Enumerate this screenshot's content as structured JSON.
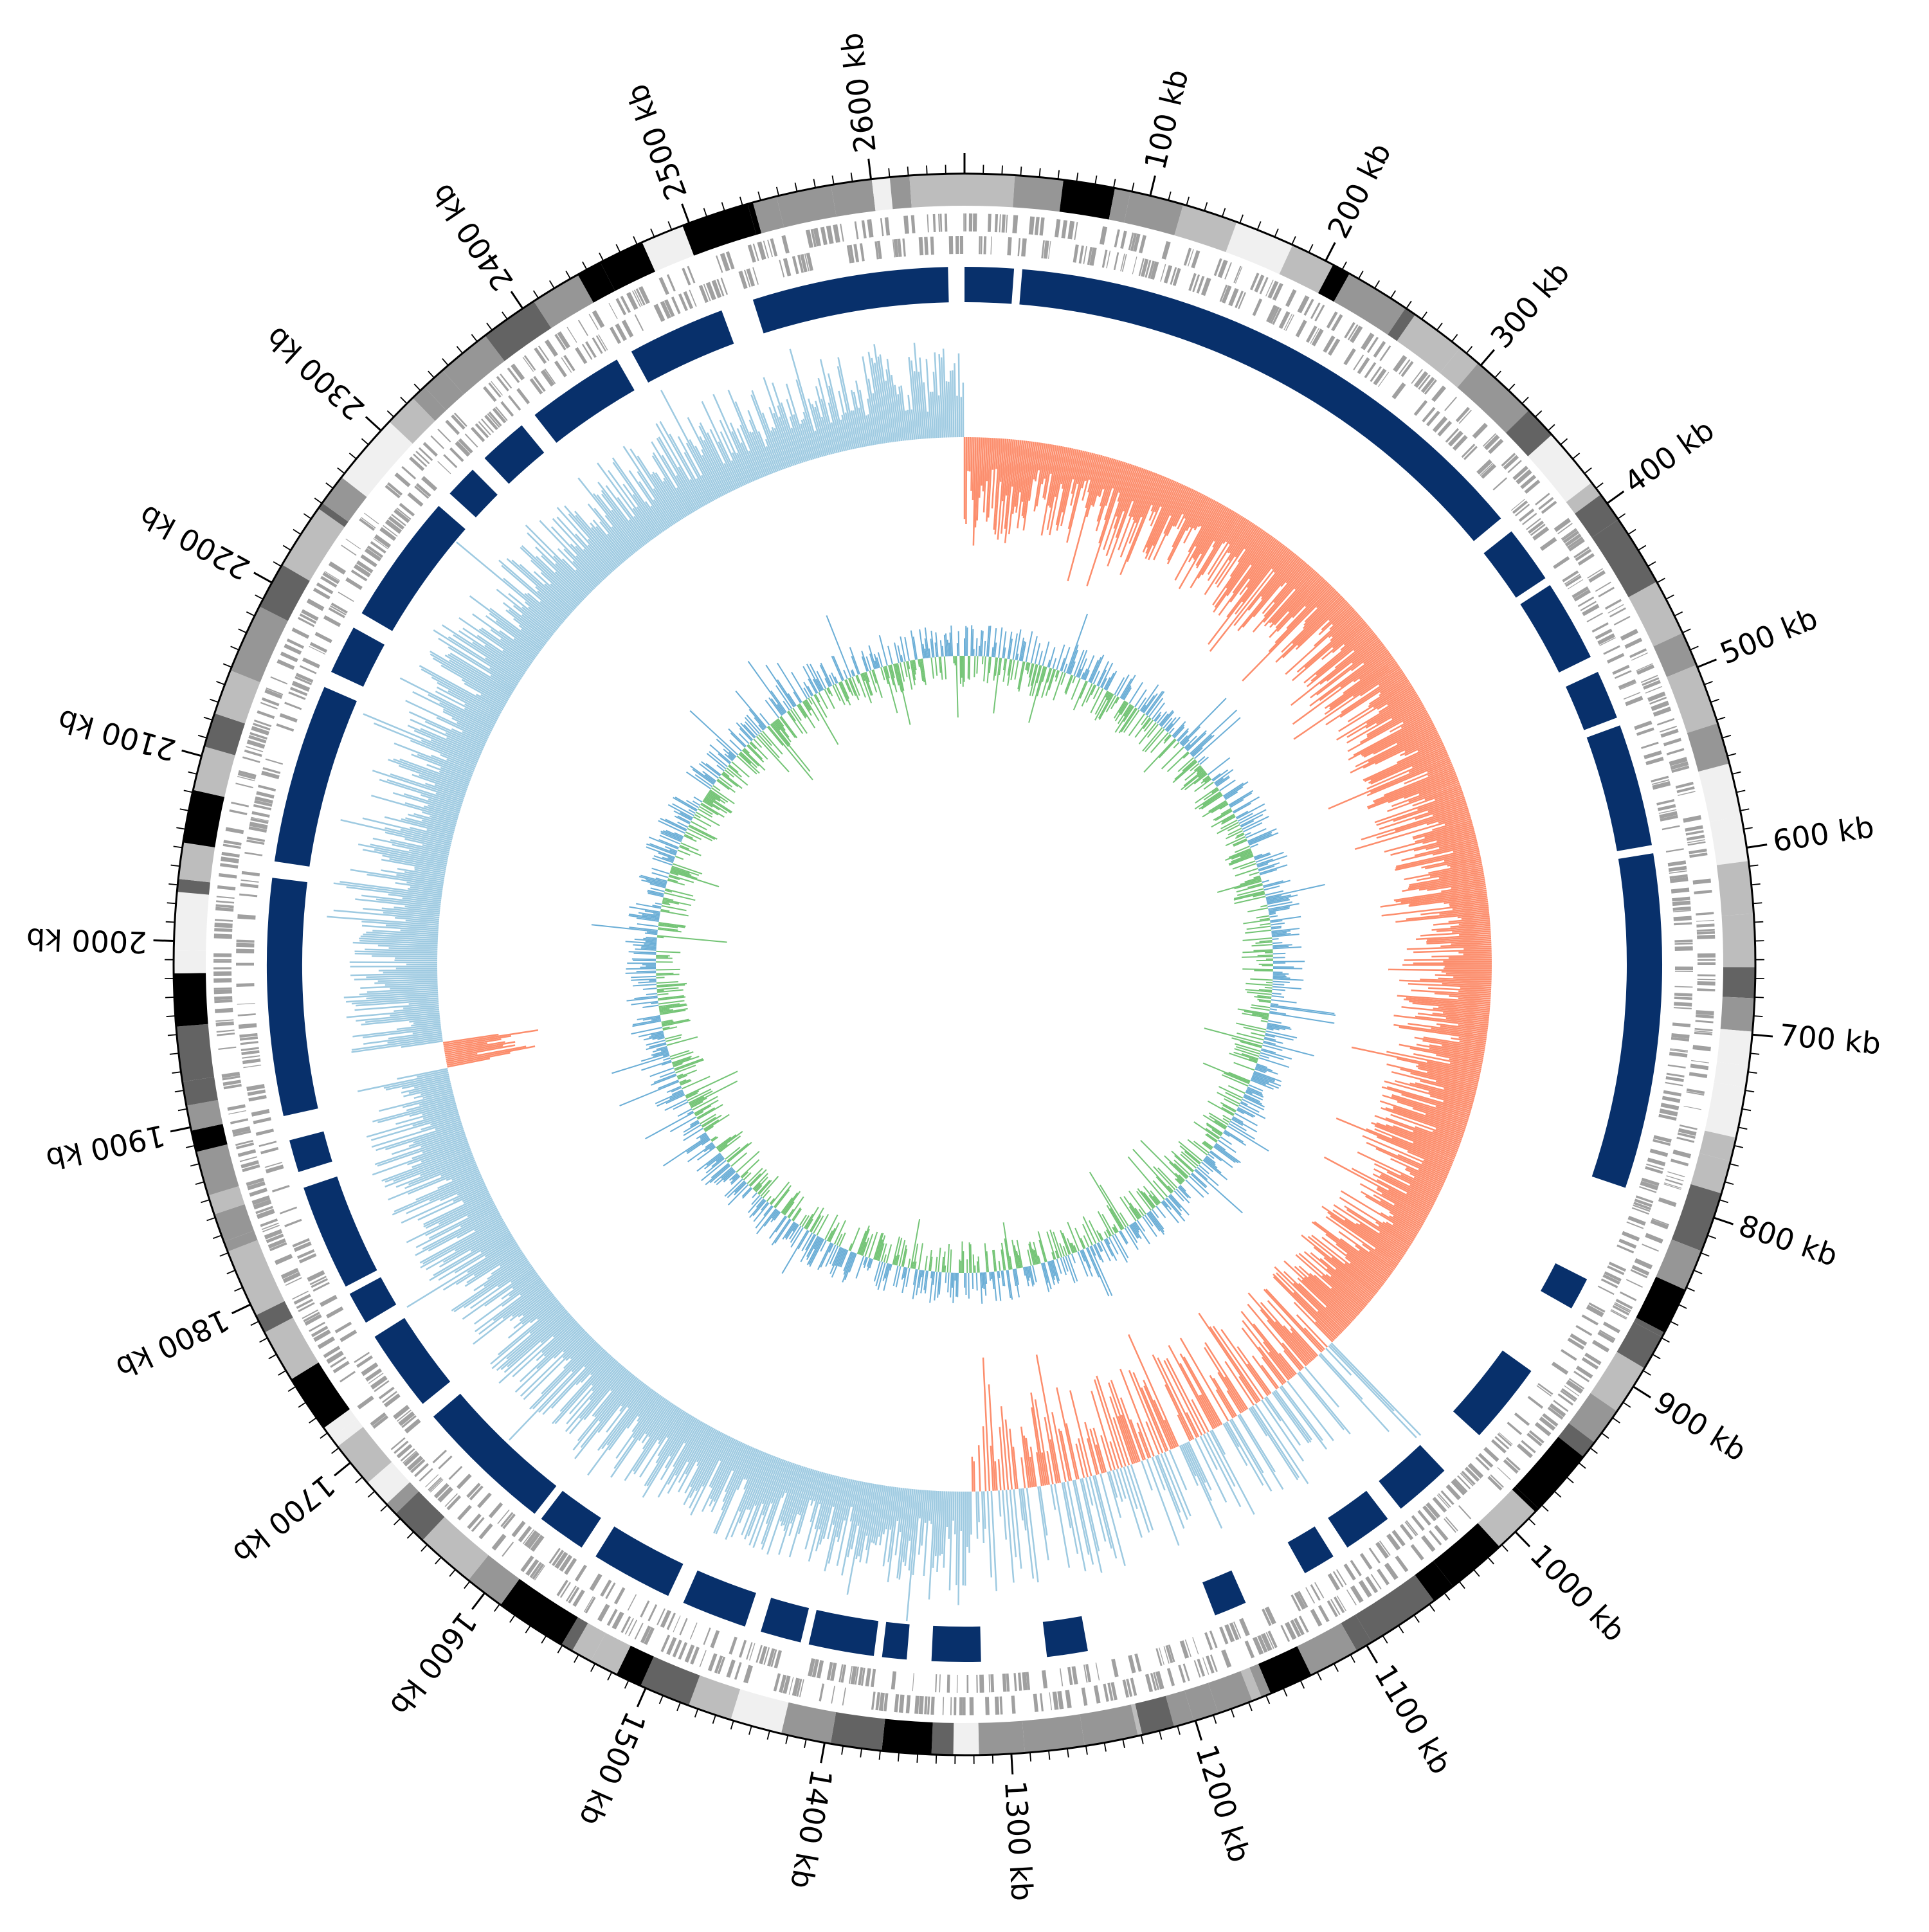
{
  "chart_data": {
    "type": "circular-genome",
    "title": "",
    "genome_length_kb": 2650,
    "unit": "kb",
    "major_tick_kb": 100,
    "minor_tick_kb": 10,
    "tick_labels": [
      "2600 kb",
      "100 kb",
      "200 kb",
      "300 kb",
      "400 kb",
      "500 kb",
      "600 kb",
      "700 kb",
      "800 kb",
      "900 kb",
      "1000 kb",
      "1100 kb",
      "1200 kb",
      "1300 kb",
      "1400 kb",
      "1500 kb",
      "1600 kb",
      "1700 kb",
      "1800 kb",
      "1900 kb",
      "2000 kb",
      "2100 kb",
      "2200 kb",
      "2300 kb",
      "2400 kb",
      "2500 kb"
    ],
    "tick_positions_kb": [
      2600,
      100,
      200,
      300,
      400,
      500,
      600,
      700,
      800,
      900,
      1000,
      1100,
      1200,
      1300,
      1400,
      1500,
      1600,
      1700,
      1800,
      1900,
      2000,
      2100,
      2200,
      2300,
      2400,
      2500
    ],
    "tracks": {
      "outer_band_colors": [
        "#f0f0f0",
        "#bdbdbd",
        "#636363",
        "#000000",
        "#969696"
      ],
      "genes_color": "#a0a0a0",
      "blocks_color": "#08306b",
      "gc_skew_positive_color": "#fc8d6c",
      "gc_skew_negative_color": "#9ecae1",
      "gc_content_above_color": "#6baed6",
      "gc_content_below_color": "#74c476"
    },
    "blocks_kb": [
      [
        0,
        30
      ],
      [
        35,
        370
      ],
      [
        380,
        415
      ],
      [
        420,
        470
      ],
      [
        480,
        510
      ],
      [
        515,
        590
      ],
      [
        595,
        800
      ],
      [
        860,
        880
      ],
      [
        925,
        975
      ],
      [
        1005,
        1040
      ],
      [
        1050,
        1080
      ],
      [
        1090,
        1110
      ],
      [
        1150,
        1170
      ],
      [
        1250,
        1275
      ],
      [
        1315,
        1345
      ],
      [
        1360,
        1375
      ],
      [
        1380,
        1420
      ],
      [
        1425,
        1450
      ],
      [
        1460,
        1500
      ],
      [
        1510,
        1560
      ],
      [
        1570,
        1600
      ],
      [
        1605,
        1690
      ],
      [
        1700,
        1750
      ],
      [
        1760,
        1780
      ],
      [
        1785,
        1850
      ],
      [
        1860,
        1880
      ],
      [
        1895,
        2040
      ],
      [
        2050,
        2160
      ],
      [
        2170,
        2200
      ],
      [
        2210,
        2290
      ],
      [
        2300,
        2320
      ],
      [
        2330,
        2360
      ],
      [
        2370,
        2430
      ],
      [
        2440,
        2500
      ],
      [
        2520,
        2640
      ]
    ],
    "gc_skew_profile": {
      "note_free": true,
      "positive_regions_kb": [
        [
          0,
          1320
        ],
        [
          1905,
          1925
        ]
      ],
      "negative_regions_kb": [
        [
          1320,
          2650
        ]
      ]
    }
  }
}
